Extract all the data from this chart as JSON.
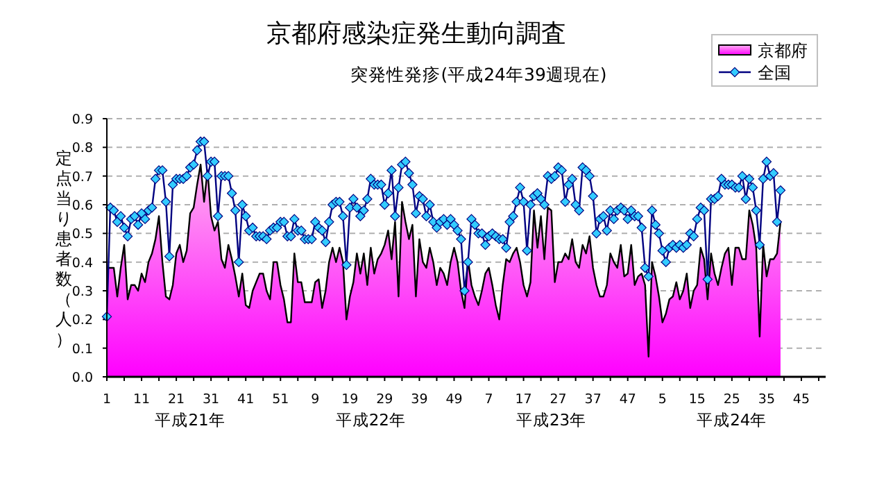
{
  "chart_data": {
    "type": "area",
    "title": "京都府感染症発生動向調査",
    "subtitle": "突発性発疹(平成24年39週現在)",
    "ylabel": "定点当り患者数（人）",
    "categories": [
      "1",
      null,
      null,
      null,
      null,
      null,
      null,
      null,
      null,
      null,
      "11",
      null,
      null,
      null,
      null,
      null,
      null,
      null,
      null,
      null,
      "21",
      null,
      null,
      null,
      null,
      null,
      null,
      null,
      null,
      null,
      "31",
      null,
      null,
      null,
      null,
      null,
      null,
      null,
      null,
      null,
      "41",
      null,
      null,
      null,
      null,
      null,
      null,
      null,
      null,
      null,
      "51",
      null,
      null,
      null,
      null,
      null,
      null,
      null,
      null,
      null,
      "9",
      null,
      null,
      null,
      null,
      null,
      null,
      null,
      null,
      null,
      "19",
      null,
      null,
      null,
      null,
      null,
      null,
      null,
      null,
      null,
      "29",
      null,
      null,
      null,
      null,
      null,
      null,
      null,
      null,
      null,
      "39",
      null,
      null,
      null,
      null,
      null,
      null,
      null,
      null,
      null,
      "49",
      null,
      null,
      null,
      null,
      null,
      null,
      null,
      null,
      null,
      "7",
      null,
      null,
      null,
      null,
      null,
      null,
      null,
      null,
      null,
      "17",
      null,
      null,
      null,
      null,
      null,
      null,
      null,
      null,
      null,
      "27",
      null,
      null,
      null,
      null,
      null,
      null,
      null,
      null,
      null,
      "37",
      null,
      null,
      null,
      null,
      null,
      null,
      null,
      null,
      null,
      "47",
      null,
      null,
      null,
      null,
      null,
      null,
      null,
      null,
      null,
      "5",
      null,
      null,
      null,
      null,
      null,
      null,
      null,
      null,
      null,
      "15",
      null,
      null,
      null,
      null,
      null,
      null,
      null,
      null,
      null,
      "25",
      null,
      null,
      null,
      null,
      null,
      null,
      null,
      null,
      null,
      "35",
      null,
      null,
      null,
      null,
      null,
      null,
      null,
      null,
      null,
      "45",
      null,
      null,
      null,
      null,
      null,
      null,
      null
    ],
    "series": [
      {
        "name": "京都府",
        "color": "#ff00ff",
        "values": [
          0.38,
          0.38,
          0.38,
          0.28,
          0.38,
          0.46,
          0.27,
          0.32,
          0.32,
          0.3,
          0.36,
          0.33,
          0.4,
          0.43,
          0.48,
          0.56,
          0.4,
          0.28,
          0.27,
          0.32,
          0.43,
          0.46,
          0.4,
          0.44,
          0.57,
          0.59,
          0.67,
          0.74,
          0.61,
          0.72,
          0.56,
          0.51,
          0.54,
          0.41,
          0.38,
          0.46,
          0.41,
          0.35,
          0.28,
          0.36,
          0.25,
          0.24,
          0.3,
          0.33,
          0.36,
          0.36,
          0.3,
          0.27,
          0.4,
          0.4,
          0.32,
          0.27,
          0.19,
          0.19,
          0.43,
          0.33,
          0.33,
          0.26,
          0.26,
          0.26,
          0.33,
          0.34,
          0.24,
          0.3,
          0.4,
          0.45,
          0.4,
          0.45,
          0.4,
          0.2,
          0.28,
          0.33,
          0.43,
          0.36,
          0.43,
          0.32,
          0.45,
          0.36,
          0.41,
          0.43,
          0.46,
          0.51,
          0.41,
          0.54,
          0.28,
          0.61,
          0.54,
          0.48,
          0.53,
          0.28,
          0.48,
          0.4,
          0.38,
          0.45,
          0.4,
          0.32,
          0.38,
          0.36,
          0.32,
          0.4,
          0.45,
          0.4,
          0.3,
          0.24,
          0.41,
          0.32,
          0.28,
          0.25,
          0.3,
          0.36,
          0.38,
          0.32,
          0.25,
          0.2,
          0.32,
          0.41,
          0.4,
          0.43,
          0.45,
          0.4,
          0.32,
          0.28,
          0.33,
          0.58,
          0.45,
          0.56,
          0.41,
          0.59,
          0.58,
          0.33,
          0.4,
          0.4,
          0.43,
          0.41,
          0.48,
          0.4,
          0.38,
          0.46,
          0.43,
          0.49,
          0.38,
          0.32,
          0.28,
          0.28,
          0.32,
          0.43,
          0.4,
          0.38,
          0.46,
          0.35,
          0.36,
          0.46,
          0.32,
          0.35,
          0.36,
          0.32,
          0.07,
          0.4,
          0.35,
          0.28,
          0.19,
          0.22,
          0.27,
          0.28,
          0.33,
          0.27,
          0.3,
          0.36,
          0.24,
          0.3,
          0.32,
          0.45,
          0.41,
          0.27,
          0.43,
          0.36,
          0.32,
          0.38,
          0.43,
          0.45,
          0.32,
          0.45,
          0.45,
          0.41,
          0.41,
          0.58,
          0.53,
          0.45,
          0.14,
          0.46,
          0.35,
          0.41,
          0.41,
          0.43,
          0.54,
          null,
          null,
          null,
          null,
          null,
          null,
          null,
          null,
          null,
          null,
          null,
          null,
          null
        ]
      },
      {
        "name": "全国",
        "type": "line",
        "color": "#000080",
        "marker": "diamond",
        "values": [
          0.21,
          0.59,
          0.58,
          0.54,
          0.56,
          0.52,
          0.49,
          0.55,
          0.56,
          0.53,
          0.57,
          0.55,
          0.58,
          0.59,
          0.69,
          0.72,
          0.72,
          0.61,
          0.42,
          0.67,
          0.69,
          0.69,
          0.69,
          0.7,
          0.73,
          0.74,
          0.79,
          0.82,
          0.82,
          0.7,
          0.75,
          0.75,
          0.56,
          0.7,
          0.7,
          0.7,
          0.64,
          0.58,
          0.4,
          0.6,
          0.56,
          0.51,
          0.52,
          0.49,
          0.49,
          0.49,
          0.48,
          0.51,
          0.52,
          0.52,
          0.54,
          0.54,
          0.49,
          0.49,
          0.55,
          0.51,
          0.51,
          0.48,
          0.48,
          0.48,
          0.54,
          0.52,
          0.51,
          0.47,
          0.54,
          0.6,
          0.61,
          0.61,
          0.56,
          0.39,
          0.59,
          0.62,
          0.59,
          0.56,
          0.58,
          0.62,
          0.69,
          0.67,
          0.67,
          0.67,
          0.6,
          0.64,
          0.72,
          0.56,
          0.66,
          0.74,
          0.75,
          0.71,
          0.67,
          0.57,
          0.63,
          0.62,
          0.56,
          0.6,
          0.54,
          0.52,
          0.54,
          0.55,
          0.53,
          0.55,
          0.53,
          0.51,
          0.48,
          0.3,
          0.4,
          0.55,
          0.53,
          0.5,
          0.5,
          0.46,
          0.49,
          0.5,
          0.49,
          0.48,
          0.48,
          0.45,
          0.54,
          0.56,
          0.61,
          0.66,
          0.61,
          0.44,
          0.6,
          0.63,
          0.64,
          0.62,
          0.6,
          0.7,
          0.69,
          0.7,
          0.73,
          0.72,
          0.61,
          0.67,
          0.69,
          0.6,
          0.58,
          0.73,
          0.72,
          0.7,
          0.63,
          0.5,
          0.55,
          0.56,
          0.51,
          0.58,
          0.55,
          0.58,
          0.59,
          0.58,
          0.55,
          0.58,
          0.56,
          0.56,
          0.52,
          0.38,
          0.35,
          0.58,
          0.53,
          0.5,
          0.44,
          0.4,
          0.45,
          0.46,
          0.45,
          0.46,
          0.45,
          0.46,
          0.5,
          0.49,
          0.55,
          0.59,
          0.58,
          0.34,
          0.62,
          0.62,
          0.63,
          0.69,
          0.67,
          0.67,
          0.67,
          0.66,
          0.66,
          0.7,
          0.62,
          0.69,
          0.66,
          0.58,
          0.46,
          0.69,
          0.75,
          0.7,
          0.71,
          0.54,
          0.65,
          null,
          null,
          null,
          null,
          null,
          null,
          null,
          null,
          null,
          null,
          null,
          null,
          null
        ]
      }
    ],
    "ylim": [
      0,
      0.9
    ],
    "yticks": [
      {
        "value": 0,
        "label": "0.0"
      },
      0.1,
      0.2,
      0.3,
      0.4,
      0.5,
      0.6,
      0.7,
      0.8,
      0.9
    ],
    "grid": "y",
    "legend": "top right",
    "annotations": [
      "平成21年",
      "平成22年",
      "平成23年",
      "平成24年"
    ]
  }
}
